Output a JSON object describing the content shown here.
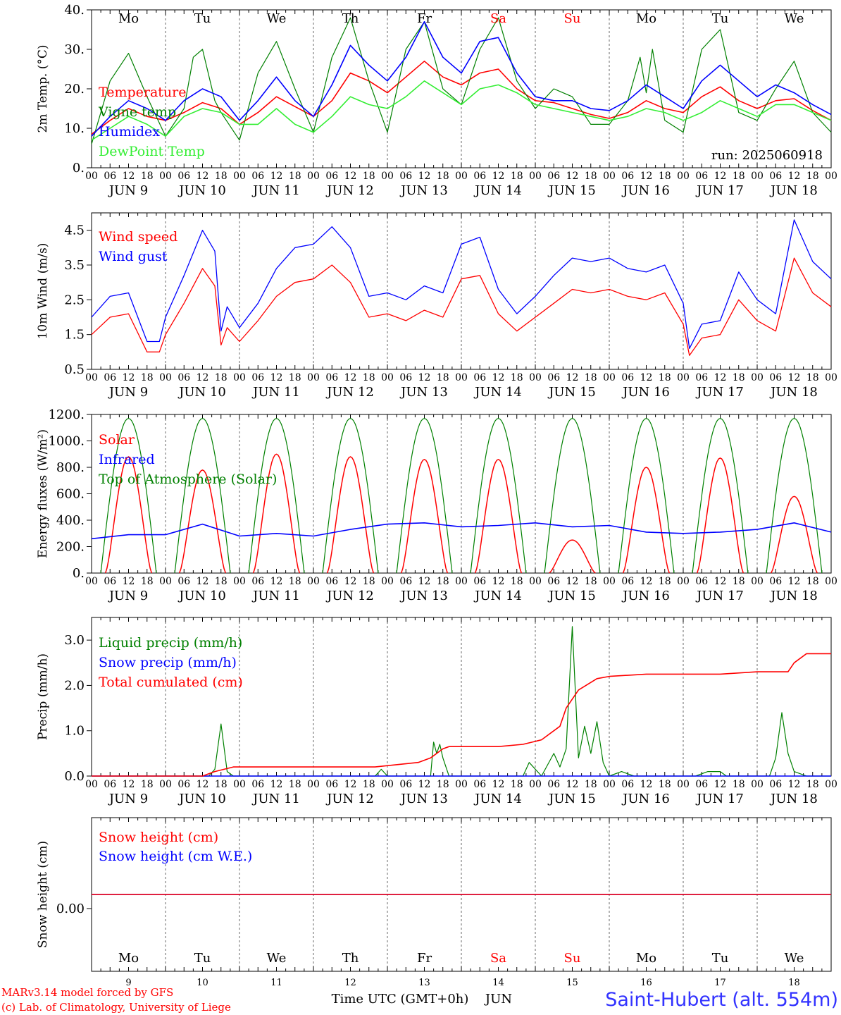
{
  "days_top": [
    {
      "label": "Mo",
      "color": "#000000"
    },
    {
      "label": "Tu",
      "color": "#000000"
    },
    {
      "label": "We",
      "color": "#000000"
    },
    {
      "label": "Th",
      "color": "#000000"
    },
    {
      "label": "Fr",
      "color": "#000000"
    },
    {
      "label": "Sa",
      "color": "#ff0000"
    },
    {
      "label": "Su",
      "color": "#ff0000"
    },
    {
      "label": "Mo",
      "color": "#000000"
    },
    {
      "label": "Tu",
      "color": "#000000"
    },
    {
      "label": "We",
      "color": "#000000"
    }
  ],
  "hour_ticks": [
    "00",
    "06",
    "12",
    "18"
  ],
  "final_hour_tick": "00",
  "dates": [
    "JUN  9",
    "JUN 10",
    "JUN 11",
    "JUN 12",
    "JUN 13",
    "JUN 14",
    "JUN 15",
    "JUN 16",
    "JUN 17",
    "JUN 18"
  ],
  "day_numbers": [
    "9",
    "10",
    "11",
    "12",
    "13",
    "14",
    "15",
    "16",
    "17",
    "18"
  ],
  "run_label": "run: 2025060918",
  "x_title": "Time UTC (GMT+0h)",
  "x_month": "JUN",
  "credits": [
    "MARv3.14 model forced by GFS",
    "(c) Lab. of Climatology, University of Liege"
  ],
  "station": "Saint-Hubert (alt. 554m)",
  "chart_data": [
    {
      "type": "line",
      "ylabel": "2m Temp. (°C)",
      "ylim": [
        0,
        40
      ],
      "yticks": [
        "0.",
        "10.",
        "20.",
        "30.",
        "40."
      ],
      "x_unit": "hours since 2025-06-09 00 UTC",
      "series": [
        {
          "name": "Temperature",
          "color": "#ff0000",
          "x": [
            0,
            6,
            12,
            18,
            24,
            30,
            36,
            42,
            48,
            54,
            60,
            66,
            72,
            78,
            84,
            90,
            96,
            102,
            108,
            114,
            120,
            126,
            132,
            138,
            144,
            150,
            156,
            162,
            168,
            174,
            180,
            186,
            192,
            198,
            204,
            210,
            216,
            222,
            228,
            234,
            240
          ],
          "values": [
            8.5,
            12,
            15,
            13,
            12,
            14,
            16.5,
            15,
            11,
            14,
            18,
            15.5,
            13,
            17,
            24,
            22,
            19,
            23,
            27,
            23,
            21,
            24,
            25,
            20,
            17,
            16.5,
            15,
            13.5,
            12.5,
            14,
            17,
            15,
            14,
            18,
            20.5,
            17,
            15,
            17,
            17.5,
            14.5,
            12
          ]
        },
        {
          "name": "Vigne temp",
          "color": "#008000",
          "x": [
            0,
            6,
            12,
            18,
            24,
            30,
            33,
            36,
            40,
            42,
            48,
            54,
            60,
            66,
            72,
            78,
            84,
            90,
            96,
            102,
            108,
            114,
            120,
            126,
            132,
            138,
            144,
            150,
            156,
            162,
            168,
            174,
            178,
            180,
            182,
            186,
            192,
            198,
            204,
            210,
            216,
            222,
            228,
            234,
            240
          ],
          "values": [
            6,
            22,
            29,
            18,
            8,
            15,
            28,
            30,
            17,
            14,
            7,
            24,
            32,
            20,
            9,
            28,
            38,
            22,
            9,
            30,
            37,
            20,
            16,
            30,
            38,
            22,
            15,
            20,
            18,
            11,
            11,
            17,
            28,
            19,
            30,
            12,
            9,
            30,
            35,
            14,
            12,
            20,
            27,
            14,
            9
          ]
        },
        {
          "name": "Humidex",
          "color": "#0000ff",
          "x": [
            0,
            6,
            12,
            18,
            24,
            30,
            36,
            42,
            48,
            54,
            60,
            66,
            72,
            78,
            84,
            90,
            96,
            102,
            108,
            114,
            120,
            126,
            132,
            138,
            144,
            150,
            156,
            162,
            168,
            174,
            180,
            186,
            192,
            198,
            204,
            210,
            216,
            222,
            228,
            234,
            240
          ],
          "values": [
            8,
            13,
            17,
            15,
            12,
            17,
            20,
            18,
            12,
            17,
            23,
            17,
            13,
            21,
            31,
            26,
            22,
            28,
            37,
            28,
            24,
            32,
            33,
            24,
            18,
            17,
            17,
            15,
            14.5,
            17,
            21,
            18,
            15,
            22,
            26,
            22,
            18,
            21,
            19,
            16,
            13.5
          ]
        },
        {
          "name": "DewPoint Temp",
          "color": "#33ee33",
          "x": [
            0,
            6,
            12,
            18,
            24,
            30,
            36,
            42,
            48,
            54,
            60,
            66,
            72,
            78,
            84,
            90,
            96,
            102,
            108,
            114,
            120,
            126,
            132,
            138,
            144,
            150,
            156,
            162,
            168,
            174,
            180,
            186,
            192,
            198,
            204,
            210,
            216,
            222,
            228,
            234,
            240
          ],
          "values": [
            7,
            10,
            13,
            11,
            8,
            13,
            15,
            14,
            11,
            11,
            15,
            11,
            9,
            13,
            18,
            16,
            15,
            18,
            22,
            19,
            16,
            20,
            21,
            19,
            16,
            15,
            14,
            13,
            12,
            13,
            15,
            14,
            12,
            14,
            17,
            15,
            13,
            16,
            16,
            14,
            12
          ]
        }
      ]
    },
    {
      "type": "line",
      "ylabel": "10m Wind (m/s)",
      "ylim": [
        0.5,
        5.0
      ],
      "yticks": [
        "0.5",
        "1.5",
        "2.5",
        "3.5",
        "4.5"
      ],
      "x_unit": "hours since 2025-06-09 00 UTC",
      "series": [
        {
          "name": "Wind speed",
          "color": "#ff0000",
          "x": [
            0,
            6,
            12,
            18,
            22,
            24,
            30,
            36,
            40,
            42,
            44,
            48,
            54,
            60,
            66,
            72,
            78,
            84,
            90,
            96,
            102,
            108,
            114,
            120,
            126,
            132,
            138,
            144,
            150,
            156,
            162,
            168,
            174,
            180,
            186,
            192,
            194,
            198,
            204,
            210,
            216,
            222,
            228,
            234,
            240
          ],
          "values": [
            1.5,
            2.0,
            2.1,
            1.0,
            1.0,
            1.5,
            2.4,
            3.4,
            2.9,
            1.2,
            1.7,
            1.3,
            1.9,
            2.6,
            3.0,
            3.1,
            3.5,
            3.0,
            2.0,
            2.1,
            1.9,
            2.2,
            2.0,
            3.1,
            3.2,
            2.1,
            1.6,
            2.0,
            2.4,
            2.8,
            2.7,
            2.8,
            2.6,
            2.5,
            2.7,
            1.8,
            0.9,
            1.4,
            1.5,
            2.5,
            1.9,
            1.6,
            3.7,
            2.7,
            2.3
          ]
        },
        {
          "name": "Wind gust",
          "color": "#0000ff",
          "x": [
            0,
            6,
            12,
            18,
            22,
            24,
            30,
            36,
            40,
            42,
            44,
            48,
            54,
            60,
            66,
            72,
            78,
            84,
            90,
            96,
            102,
            108,
            114,
            120,
            126,
            132,
            138,
            144,
            150,
            156,
            162,
            168,
            174,
            180,
            186,
            192,
            194,
            198,
            204,
            210,
            216,
            222,
            228,
            234,
            240
          ],
          "values": [
            2.0,
            2.6,
            2.7,
            1.3,
            1.3,
            2.0,
            3.2,
            4.5,
            3.9,
            1.6,
            2.3,
            1.7,
            2.4,
            3.4,
            4.0,
            4.1,
            4.6,
            4.0,
            2.6,
            2.7,
            2.5,
            2.9,
            2.7,
            4.1,
            4.3,
            2.8,
            2.1,
            2.6,
            3.2,
            3.7,
            3.6,
            3.7,
            3.4,
            3.3,
            3.5,
            2.4,
            1.1,
            1.8,
            1.9,
            3.3,
            2.5,
            2.1,
            4.8,
            3.6,
            3.1
          ]
        }
      ]
    },
    {
      "type": "line",
      "ylabel": "Energy fluxes (W/m²)",
      "ylim": [
        0,
        1200
      ],
      "yticks": [
        "0.",
        "200.",
        "400.",
        "600.",
        "800.",
        "1000.",
        "1200."
      ],
      "x_unit": "hours since 2025-06-09 00 UTC",
      "solar_daily_peaks": [
        880,
        780,
        900,
        880,
        860,
        860,
        250,
        800,
        870,
        580
      ],
      "toa_daily_peak": 1170,
      "series": [
        {
          "name": "Solar",
          "color": "#ff0000"
        },
        {
          "name": "Infrared",
          "color": "#0000ff",
          "x": [
            0,
            12,
            24,
            36,
            48,
            60,
            72,
            84,
            96,
            108,
            120,
            132,
            144,
            156,
            168,
            180,
            192,
            204,
            216,
            228,
            240
          ],
          "values": [
            260,
            290,
            290,
            370,
            280,
            300,
            280,
            330,
            370,
            380,
            350,
            360,
            380,
            350,
            360,
            310,
            300,
            310,
            330,
            380,
            310
          ]
        },
        {
          "name": "Top of Atmosphere (Solar)",
          "color": "#008000"
        }
      ]
    },
    {
      "type": "line",
      "ylabel": "Precip (mm/h)",
      "ylim": [
        0,
        3.5
      ],
      "yticks": [
        "0.0",
        "1.0",
        "2.0",
        "3.0"
      ],
      "x_unit": "hours since 2025-06-09 00 UTC",
      "series": [
        {
          "name": "Liquid precip (mm/h)",
          "color": "#008000",
          "x": [
            0,
            38,
            40,
            42,
            44,
            46,
            48,
            92,
            94,
            96,
            110,
            111,
            112,
            113,
            114,
            116,
            140,
            142,
            146,
            150,
            152,
            154,
            156,
            158,
            160,
            162,
            164,
            166,
            168,
            172,
            176,
            196,
            200,
            204,
            206,
            208,
            210,
            212,
            214,
            216,
            220,
            222,
            224,
            226,
            228,
            232,
            236,
            240
          ],
          "values": [
            0,
            0,
            0.15,
            1.15,
            0.1,
            0,
            0,
            0,
            0.15,
            0,
            0,
            0.75,
            0.5,
            0.7,
            0.4,
            0,
            0,
            0.3,
            0,
            0.5,
            0.2,
            0.6,
            3.3,
            0.4,
            1.1,
            0.5,
            1.2,
            0.3,
            0,
            0.1,
            0,
            0,
            0.1,
            0.1,
            0,
            0,
            0,
            0,
            0,
            0,
            0,
            0.4,
            1.4,
            0.5,
            0.1,
            0,
            0,
            0
          ]
        },
        {
          "name": "Snow precip (mm/h)",
          "color": "#0000ff",
          "x": [
            0,
            240
          ],
          "values": [
            0,
            0
          ]
        },
        {
          "name": "Total cumulated (cm)",
          "color": "#ff0000",
          "x": [
            0,
            36,
            40,
            46,
            92,
            106,
            110,
            114,
            116,
            122,
            132,
            140,
            146,
            152,
            154,
            158,
            164,
            168,
            180,
            204,
            216,
            226,
            228,
            232,
            240
          ],
          "values": [
            0,
            0,
            0.1,
            0.2,
            0.2,
            0.3,
            0.4,
            0.6,
            0.65,
            0.65,
            0.65,
            0.7,
            0.8,
            1.1,
            1.5,
            1.9,
            2.15,
            2.2,
            2.25,
            2.25,
            2.3,
            2.3,
            2.5,
            2.7,
            2.7
          ]
        }
      ]
    },
    {
      "type": "line",
      "ylabel": "Snow height (cm)",
      "yticks": [
        "0.00"
      ],
      "x_unit": "hours since 2025-06-09 00 UTC",
      "series": [
        {
          "name": "Snow height (cm)",
          "color": "#ff0000",
          "x": [
            0,
            240
          ],
          "values": [
            0,
            0
          ]
        },
        {
          "name": "Snow height (cm W.E.)",
          "color": "#0000ff",
          "x": [
            0,
            240
          ],
          "values": [
            0,
            0
          ]
        }
      ]
    }
  ]
}
